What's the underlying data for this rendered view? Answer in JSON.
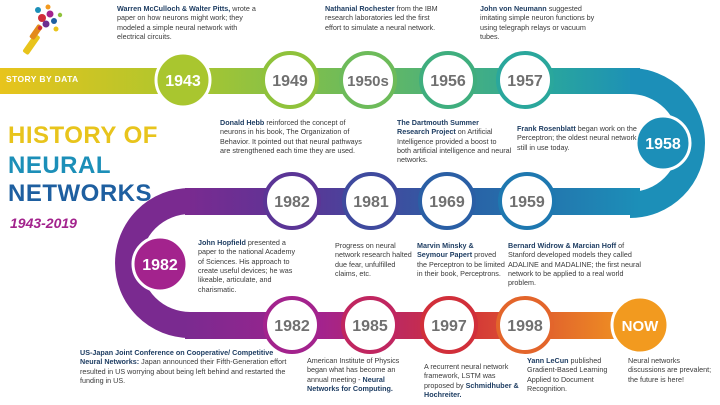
{
  "header": {
    "tag": "STORY BY DATA"
  },
  "title": {
    "line1": "HISTORY OF",
    "line2": "NEURAL",
    "line3": "NETWORKS",
    "years": "1943-2019"
  },
  "colors": {
    "yellow": "#e8c41c",
    "green": "#8fc23b",
    "teal": "#26a89a",
    "cyan": "#1c8fb8",
    "blue": "#1e5fa0",
    "purple": "#6e2d8f",
    "magenta": "#a3238d",
    "red": "#d12f3a",
    "orange": "#f29a1f",
    "grey_circle": "#707070"
  },
  "milestones": [
    {
      "id": "m1943",
      "year": "1943",
      "bold": "Warren McCulloch & Walter Pitts,",
      "rest": " wrote a paper on how neurons might work; they modeled a simple neural network with electrical circuits."
    },
    {
      "id": "m1949",
      "year": "1949",
      "bold": "Donald Hebb",
      "rest": " reinforced the concept of neurons in his book, The Organization of Behavior. It pointed out that neural pathways are strengthened each time they are used."
    },
    {
      "id": "m1950s",
      "year": "1950s",
      "bold": "Nathanial Rochester",
      "rest": " from the IBM research laboratories led the first effort to simulate a neural network."
    },
    {
      "id": "m1956",
      "year": "1956",
      "bold": "The Dartmouth Summer Research Project",
      "rest": " on Artificial Intelligence provided a boost to both artificial intelligence and neural networks."
    },
    {
      "id": "m1957",
      "year": "1957",
      "bold": "John von Neumann",
      "rest": " suggested imitating simple neuron functions by using telegraph relays or vacuum tubes."
    },
    {
      "id": "m1958",
      "year": "1958",
      "bold": "Frank Rosenblatt",
      "rest": " began work on the Perceptron; the oldest neural network still in use today."
    },
    {
      "id": "m1959",
      "year": "1959",
      "bold": "Bernard Widrow & Marcian Hoff",
      "rest": " of Stanford developed models they called ADALINE and MADALINE; the first neural network to be applied to a real world problem."
    },
    {
      "id": "m1969",
      "year": "1969",
      "bold": "Marvin Minsky & Seymour Papert",
      "rest": " proved the Perceptron to be limited in their book, Perceptrons."
    },
    {
      "id": "m1981",
      "year": "1981",
      "bold": "",
      "rest": "Progress on neural network research halted due fear, unfulfilled claims, etc."
    },
    {
      "id": "m1982a",
      "year": "1982",
      "bold": "",
      "rest": ""
    },
    {
      "id": "m1982b",
      "year": "1982",
      "bold": "John Hopfield",
      "rest": " presented a paper to the national Academy of Sciences. His approach to create useful devices; he was likeable, articulate, and charismatic."
    },
    {
      "id": "m1982c",
      "year": "1982",
      "bold": "US-Japan Joint Conference on Cooperative/ Competitive Neural Networks:",
      "rest": " Japan announced their Fifth-Generation effort resulted in US worrying about being left behind and restarted the funding in US."
    },
    {
      "id": "m1985",
      "year": "1985",
      "bold": "Neural Networks for Computing.",
      "pre": "American Institute of Physics began what has become an annual meeting - ",
      "rest": ""
    },
    {
      "id": "m1997",
      "year": "1997",
      "bold": "Schmidhuber & Hochreiter.",
      "pre": "A recurrent neural network framework, LSTM was proposed by ",
      "rest": ""
    },
    {
      "id": "m1998",
      "year": "1998",
      "bold": "Yann LeCun",
      "rest": " published Gradient-Based Learning Applied to Document Recognition."
    },
    {
      "id": "mnow",
      "year": "NOW",
      "bold": "",
      "rest": "Neural networks discussions are prevalent; the future is here!"
    }
  ]
}
